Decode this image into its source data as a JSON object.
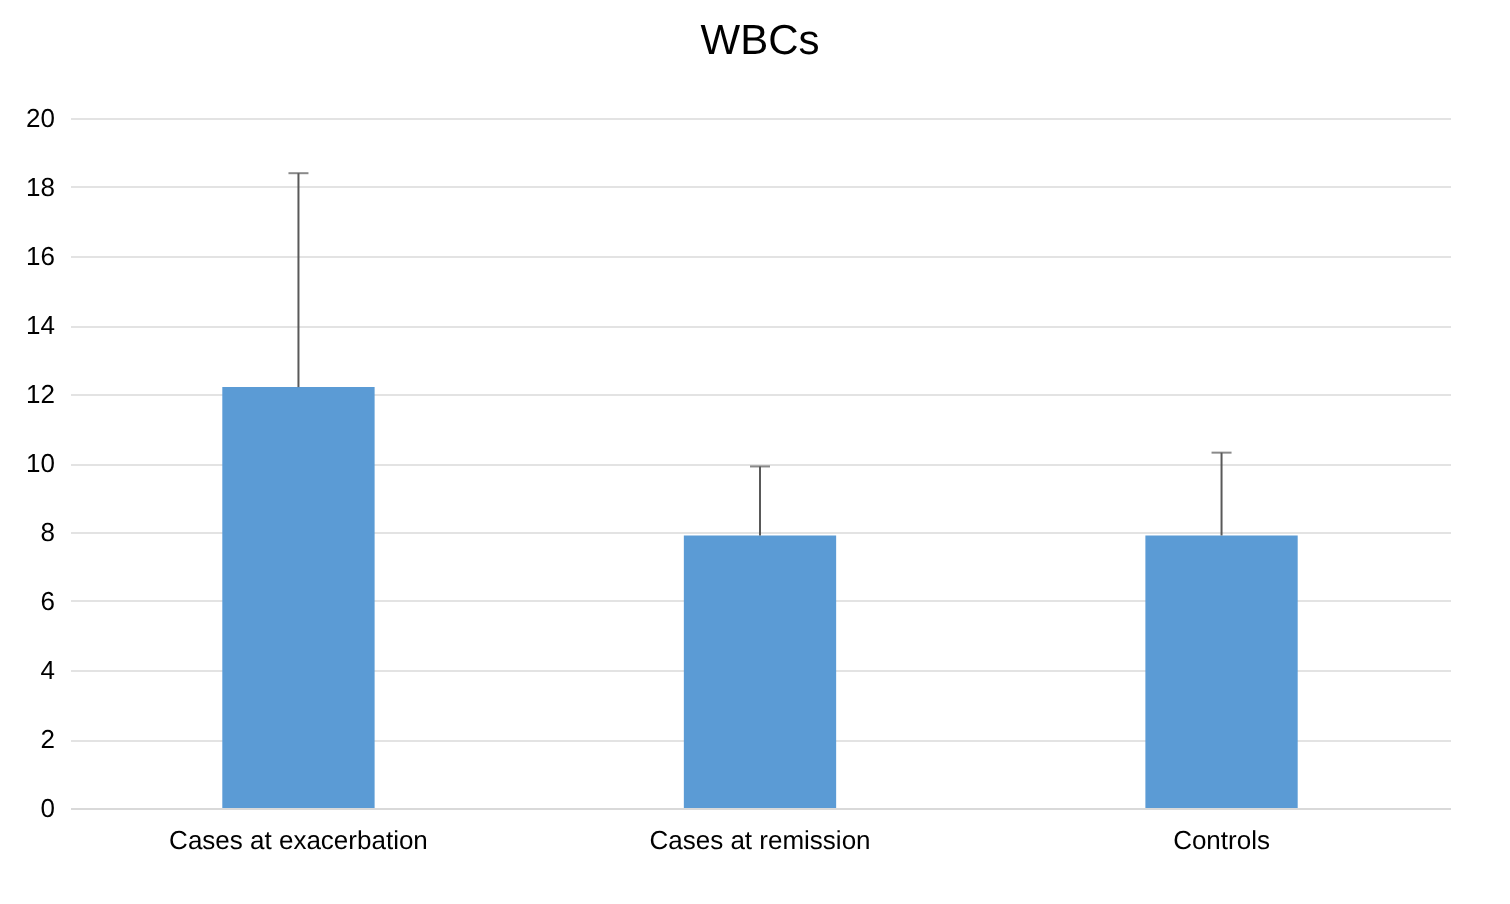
{
  "chart_data": {
    "type": "bar",
    "title": "WBCs",
    "categories": [
      "Cases at exacerbation",
      "Cases at remission",
      "Controls"
    ],
    "values": [
      12.2,
      7.9,
      7.9
    ],
    "errors": [
      [
        12.2,
        18.4
      ],
      [
        7.9,
        9.9
      ],
      [
        7.9,
        10.3
      ]
    ],
    "color": "#5b9bd5",
    "ylim": [
      0,
      20
    ],
    "yticks": [
      0,
      2,
      4,
      6,
      8,
      10,
      12,
      14,
      16,
      18,
      20
    ],
    "grid": "y"
  }
}
